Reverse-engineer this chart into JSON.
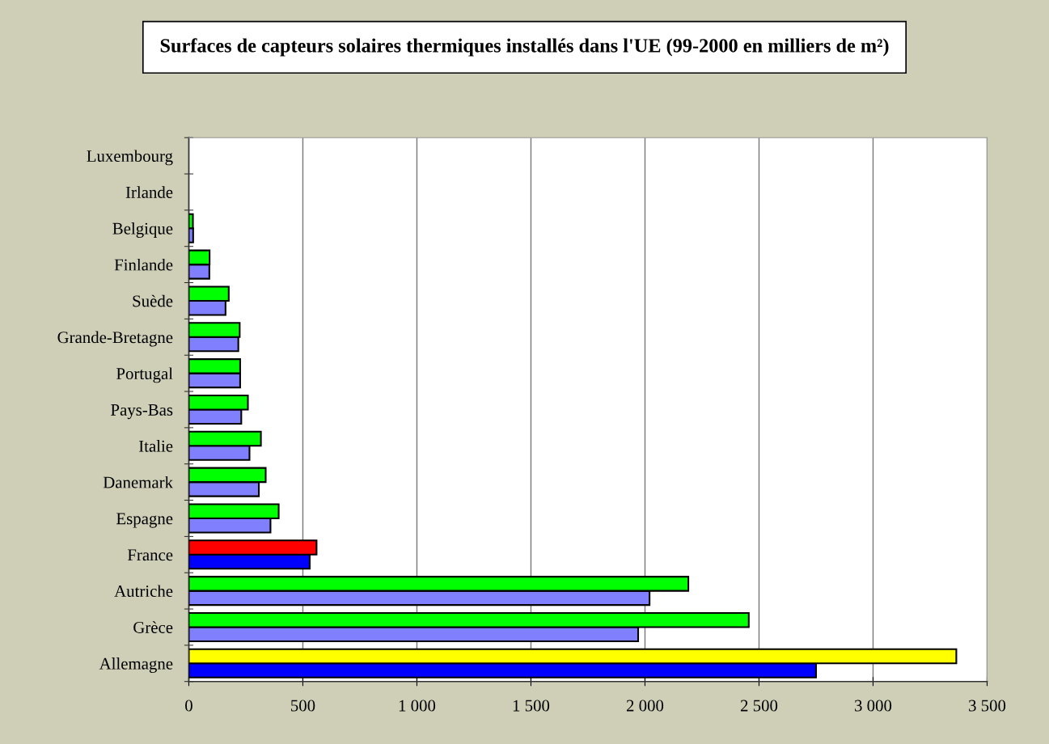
{
  "chart_data": {
    "type": "bar",
    "orientation": "horizontal",
    "title": "Surfaces de capteurs solaires thermiques installés dans l'UE (99-2000 en milliers de m²)",
    "categories": [
      "Luxembourg",
      "Irlande",
      "Belgique",
      "Finlande",
      "Suède",
      "Grande-Bretagne",
      "Portugal",
      "Pays-Bas",
      "Italie",
      "Danemark",
      "Espagne",
      "France",
      "Autriche",
      "Grèce",
      "Allemagne"
    ],
    "series": [
      {
        "values": [
          0,
          0,
          19,
          90,
          161,
          217,
          225,
          230,
          266,
          307,
          358,
          530,
          2020,
          1970,
          2750
        ],
        "colors": [
          "#8080ff",
          "#8080ff",
          "#8080ff",
          "#8080ff",
          "#8080ff",
          "#8080ff",
          "#8080ff",
          "#8080ff",
          "#8080ff",
          "#8080ff",
          "#8080ff",
          "#0000ff",
          "#8080ff",
          "#8080ff",
          "#0000ff"
        ]
      },
      {
        "values": [
          0,
          0,
          18,
          91,
          175,
          223,
          225,
          259,
          316,
          337,
          394,
          560,
          2190,
          2455,
          3365
        ],
        "colors": [
          "#00ff00",
          "#00ff00",
          "#00ff00",
          "#00ff00",
          "#00ff00",
          "#00ff00",
          "#00ff00",
          "#00ff00",
          "#00ff00",
          "#00ff00",
          "#00ff00",
          "#ff0000",
          "#00ff00",
          "#00ff00",
          "#ffff00"
        ]
      }
    ],
    "xlim": [
      0,
      3500
    ],
    "xticks": [
      0,
      {
        "value": 500,
        "label": "500"
      },
      {
        "value": 1000,
        "label": "1 000"
      },
      {
        "value": 1500,
        "label": "1 500"
      },
      {
        "value": 2000,
        "label": "2 000"
      },
      {
        "value": 2500,
        "label": "2 500"
      },
      {
        "value": 3000,
        "label": "3 000"
      },
      {
        "value": 3500,
        "label": "3 500"
      }
    ],
    "grid": "x",
    "legend": false
  }
}
